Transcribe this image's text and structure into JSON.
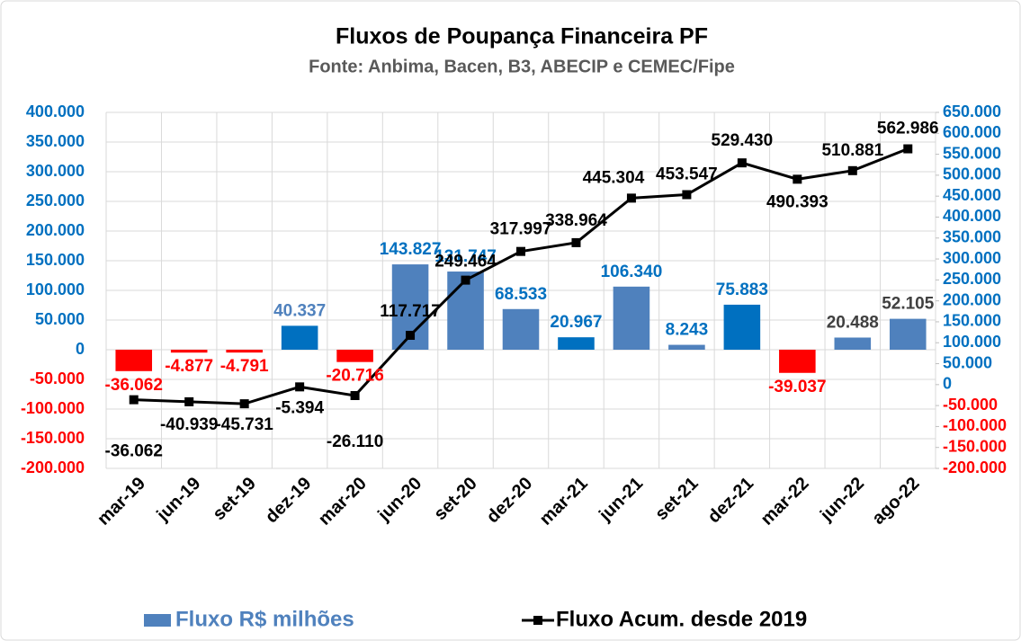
{
  "chart_data": {
    "type": "bar_line",
    "title": "Fluxos de Poupança Financeira PF",
    "subtitle": "Fonte: Anbima, Bacen, B3, ABECIP e CEMEC/Fipe",
    "categories": [
      "mar-19",
      "jun-19",
      "set-19",
      "dez-19",
      "mar-20",
      "jun-20",
      "set-20",
      "dez-20",
      "mar-21",
      "jun-21",
      "set-21",
      "dez-21",
      "mar-22",
      "jun-22",
      "ago-22"
    ],
    "series": [
      {
        "name": "Fluxo R$ milhões",
        "color": "#4f81bd",
        "colors": [
          "#ff0000",
          "#ff0000",
          "#ff0000",
          "#0070c0",
          "#ff0000",
          "#4f81bd",
          "#4f81bd",
          "#4f81bd",
          "#0070c0",
          "#4f81bd",
          "#4f81bd",
          "#0070c0",
          "#ff0000",
          "#4f81bd",
          "#4f81bd"
        ],
        "label_colors": [
          "#ff0000",
          "#ff0000",
          "#ff0000",
          "#4f81bd",
          "#ff0000",
          "#0070c0",
          "#0070c0",
          "#0070c0",
          "#0070c0",
          "#0070c0",
          "#0070c0",
          "#0070c0",
          "#ff0000",
          "#404040",
          "#404040"
        ],
        "values": [
          -36062,
          -4877,
          -4791,
          40337,
          -20716,
          143827,
          131747,
          68533,
          20967,
          106340,
          8243,
          75883,
          -39037,
          20488,
          52105
        ],
        "value_labels": [
          "-36.062",
          "-4.877",
          "-4.791",
          "40.337",
          "-20.716",
          "143.827",
          "131.747",
          "68.533",
          "20.967",
          "106.340",
          "8.243",
          "75.883",
          "-39.037",
          "20.488",
          "52.105"
        ]
      },
      {
        "name": "Fluxo Acum. desde 2019",
        "color": "#000000",
        "axis": "y2",
        "values": [
          -36062,
          -40939,
          -45731,
          -5394,
          -26110,
          117717,
          249464,
          317997,
          338964,
          445304,
          453547,
          529430,
          490393,
          510881,
          562986
        ],
        "value_labels": [
          "-36.062",
          "-40.939",
          "-45.731",
          "-5.394",
          "-26.110",
          "117.717",
          "249.464",
          "317.997",
          "338.964",
          "445.304",
          "453.547",
          "529.430",
          "490.393",
          "510.881",
          "562.986"
        ]
      }
    ],
    "ylim": [
      -200000,
      400000
    ],
    "yticks": [
      {
        "value": -200000,
        "label": "-200.000"
      },
      {
        "value": -150000,
        "label": "-150.000"
      },
      {
        "value": -100000,
        "label": "-100.000"
      },
      {
        "value": -50000,
        "label": "-50.000"
      },
      0,
      {
        "value": 50000,
        "label": "50.000"
      },
      {
        "value": 100000,
        "label": "100.000"
      },
      {
        "value": 150000,
        "label": "150.000"
      },
      {
        "value": 200000,
        "label": "200.000"
      },
      {
        "value": 250000,
        "label": "250.000"
      },
      {
        "value": 300000,
        "label": "300.000"
      },
      {
        "value": 350000,
        "label": "350.000"
      },
      {
        "value": 400000,
        "label": "400.000"
      }
    ],
    "y2lim": [
      -200000,
      650000
    ],
    "y2ticks": [
      {
        "value": -200000,
        "label": "-200.000"
      },
      {
        "value": -150000,
        "label": "-150.000"
      },
      {
        "value": -100000,
        "label": "-100.000"
      },
      {
        "value": -50000,
        "label": "-50.000"
      },
      0,
      {
        "value": 50000,
        "label": "50.000"
      },
      {
        "value": 100000,
        "label": "100.000"
      },
      {
        "value": 150000,
        "label": "150.000"
      },
      {
        "value": 200000,
        "label": "200.000"
      },
      {
        "value": 250000,
        "label": "250.000"
      },
      {
        "value": 300000,
        "label": "300.000"
      },
      {
        "value": 350000,
        "label": "350.000"
      },
      {
        "value": 400000,
        "label": "400.000"
      },
      {
        "value": 450000,
        "label": "450.000"
      },
      {
        "value": 500000,
        "label": "500.000"
      },
      {
        "value": 550000,
        "label": "550.000"
      },
      {
        "value": 600000,
        "label": "600.000"
      },
      {
        "value": 650000,
        "label": "650.000"
      }
    ],
    "grid": true,
    "positive_tick_color": "#0070c0",
    "negative_tick_color": "#ff0000"
  }
}
